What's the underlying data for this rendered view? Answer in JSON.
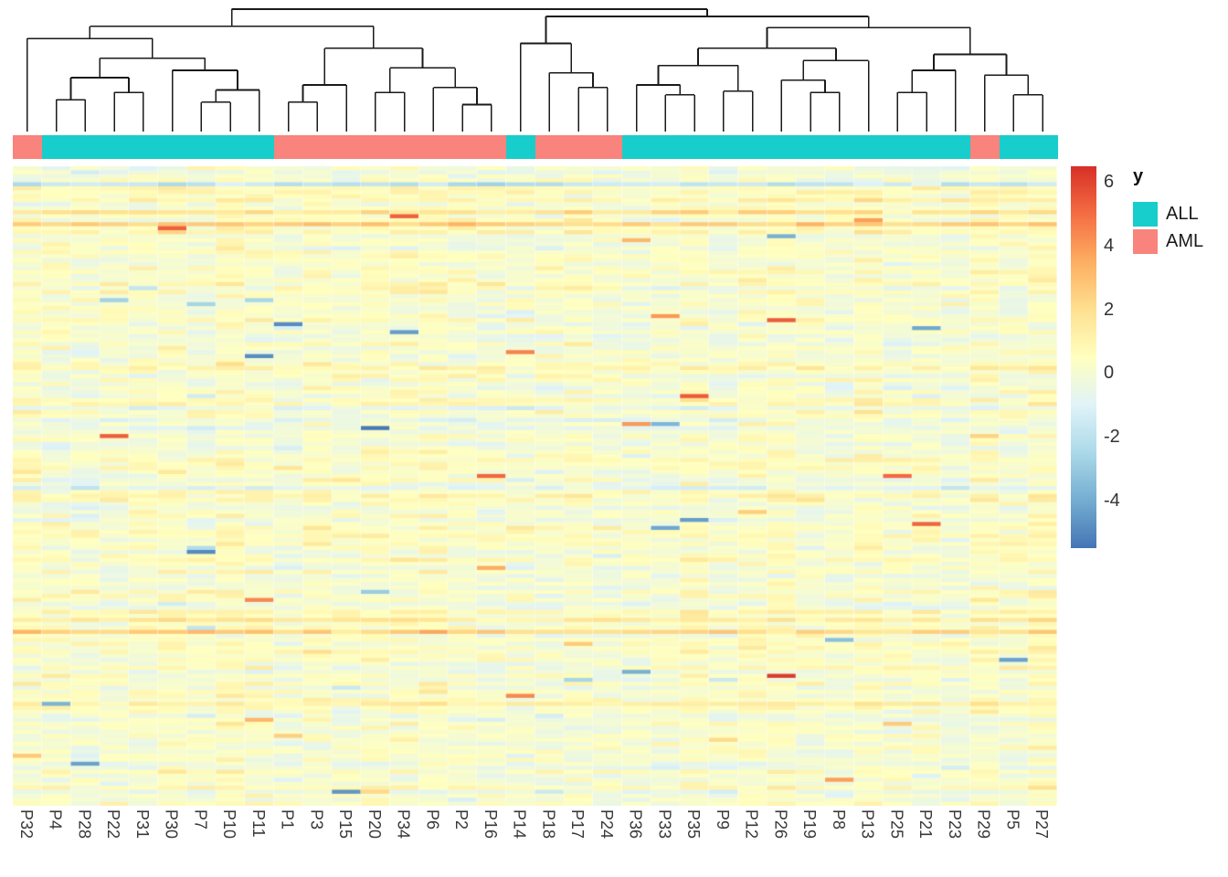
{
  "chart_data": {
    "type": "heatmap",
    "columns": [
      "P32",
      "P4",
      "P28",
      "P22",
      "P31",
      "P30",
      "P7",
      "P10",
      "P11",
      "P1",
      "P3",
      "P15",
      "P20",
      "P34",
      "P6",
      "P2",
      "P16",
      "P14",
      "P18",
      "P17",
      "P24",
      "P36",
      "P33",
      "P35",
      "P9",
      "P12",
      "P26",
      "P19",
      "P8",
      "P13",
      "P25",
      "P21",
      "P23",
      "P29",
      "P5",
      "P27"
    ],
    "column_classes": [
      "AML",
      "ALL",
      "ALL",
      "ALL",
      "ALL",
      "ALL",
      "ALL",
      "ALL",
      "ALL",
      "AML",
      "AML",
      "AML",
      "AML",
      "AML",
      "AML",
      "AML",
      "AML",
      "ALL",
      "AML",
      "AML",
      "AML",
      "ALL",
      "ALL",
      "ALL",
      "ALL",
      "ALL",
      "ALL",
      "ALL",
      "ALL",
      "ALL",
      "ALL",
      "ALL",
      "ALL",
      "AML",
      "ALL",
      "ALL"
    ],
    "n_rows": 160,
    "seed": 42,
    "value_domain": [
      -5.5,
      6.5
    ],
    "colorscale": [
      "#4575b4",
      "#74add1",
      "#abd9e9",
      "#e0f3f8",
      "#ffffbf",
      "#fee090",
      "#fdae61",
      "#f46d43",
      "#d73027"
    ],
    "colorbar_ticks": [
      6,
      4,
      2,
      0,
      -2,
      -4
    ],
    "annotation": {
      "title": "y",
      "classes": [
        {
          "label": "ALL",
          "color": "#17CECC"
        },
        {
          "label": "AML",
          "color": "#F9837D"
        }
      ]
    },
    "dendrogram": [
      1.0,
      [
        0.86,
        [
          0.76,
          0,
          [
            0.6,
            [
              0.44,
              [
                0.26,
                1,
                2
              ],
              [
                0.32,
                3,
                4
              ]
            ],
            [
              0.5,
              5,
              [
                0.34,
                [
                  0.24,
                  6,
                  7
                ],
                8
              ]
            ]
          ]
        ],
        [
          0.68,
          [
            0.38,
            [
              0.24,
              9,
              10
            ],
            11
          ],
          [
            0.52,
            [
              0.32,
              12,
              13
            ],
            [
              0.36,
              14,
              [
                0.22,
                15,
                16
              ]
            ]
          ]
        ]
      ],
      [
        0.94,
        [
          0.72,
          17,
          [
            0.48,
            18,
            [
              0.36,
              19,
              20
            ]
          ]
        ],
        [
          0.85,
          [
            0.68,
            [
              0.54,
              [
                0.38,
                21,
                [
                  0.3,
                  22,
                  23
                ]
              ],
              [
                0.33,
                24,
                25
              ]
            ],
            [
              0.58,
              [
                0.42,
                26,
                [
                  0.32,
                  27,
                  28
                ]
              ],
              29
            ]
          ],
          [
            0.63,
            [
              0.5,
              [
                0.32,
                30,
                31
              ],
              32
            ],
            [
              0.46,
              33,
              [
                0.3,
                34,
                35
              ]
            ]
          ]
        ]
      ]
    ]
  }
}
